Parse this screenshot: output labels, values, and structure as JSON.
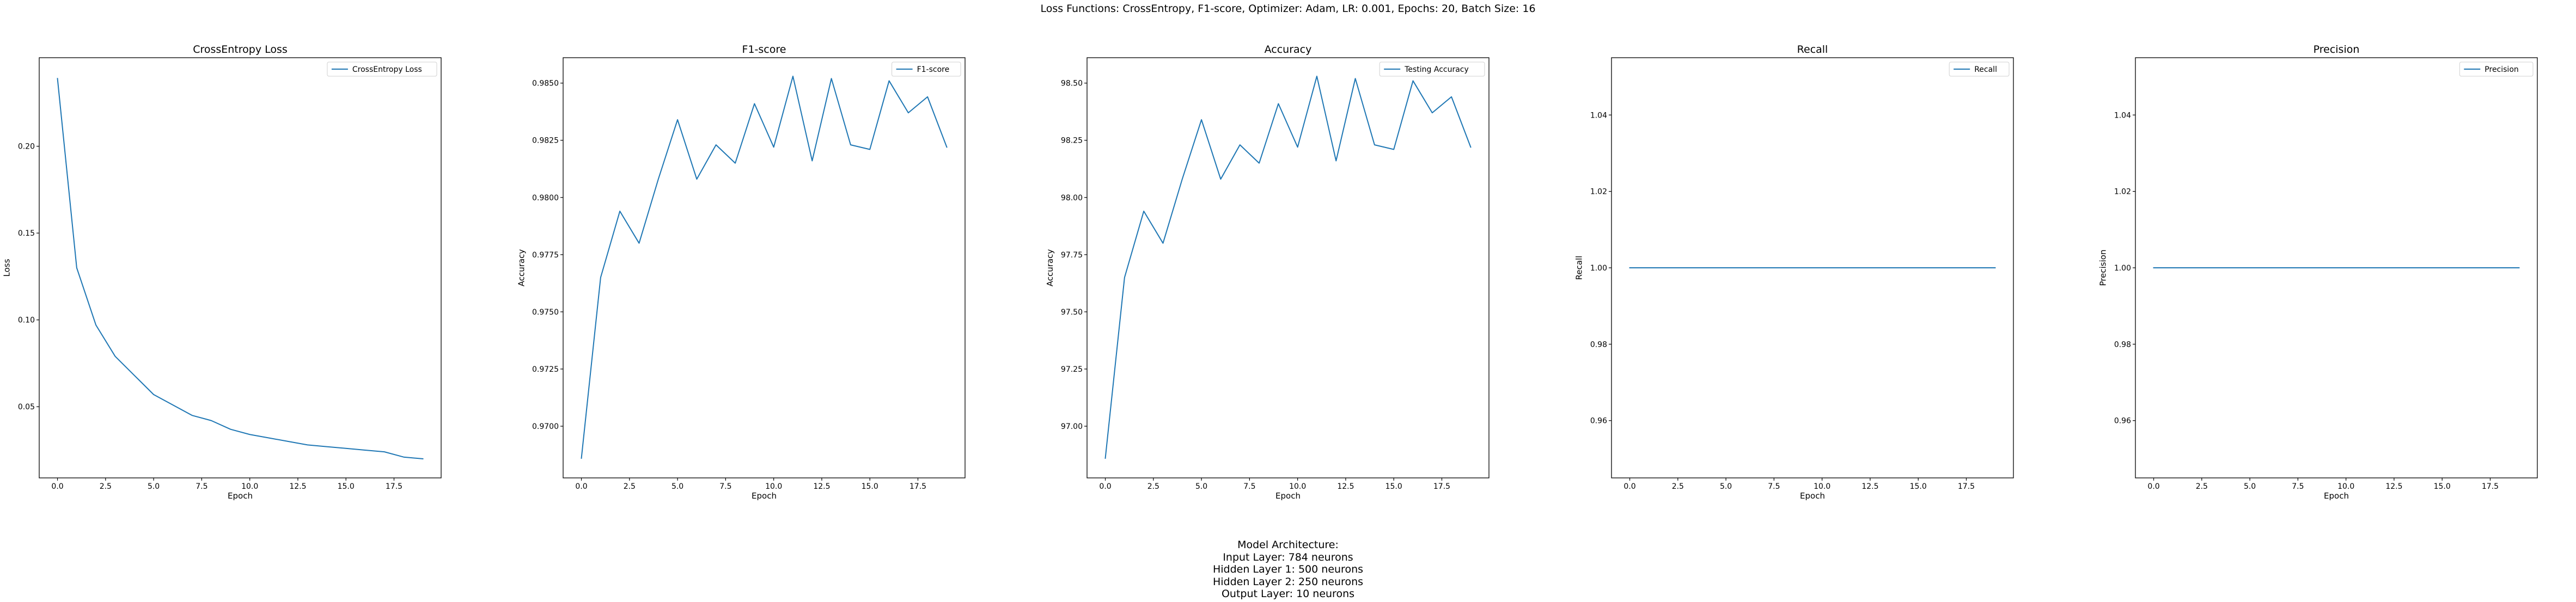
{
  "figure": {
    "suptitle": "Loss Functions: CrossEntropy, F1-score, Optimizer: Adam, LR: 0.001, Epochs: 20, Batch Size: 16",
    "architecture": {
      "heading": "Model Architecture:",
      "lines": [
        "Input Layer: 784 neurons",
        "Hidden Layer 1: 500 neurons",
        "Hidden Layer 2: 250 neurons",
        "Output Layer: 10 neurons"
      ]
    }
  },
  "colors": {
    "line": "#1f77b4",
    "axis": "#000000",
    "legend_border": "#d0d0d0"
  },
  "chart_data": [
    {
      "type": "line",
      "title": "CrossEntropy Loss",
      "xlabel": "Epoch",
      "ylabel": "Loss",
      "legend_position": "top-right",
      "xlim": [
        -0.95,
        19.95
      ],
      "ylim": [
        0.009,
        0.251
      ],
      "xticks": [
        0,
        2.5,
        5,
        7.5,
        10,
        12.5,
        15,
        17.5
      ],
      "xtick_labels": [
        "0.0",
        "2.5",
        "5.0",
        "7.5",
        "10.0",
        "12.5",
        "15.0",
        "17.5"
      ],
      "yticks": [
        0.05,
        0.1,
        0.15,
        0.2
      ],
      "ytick_labels": [
        "0.05",
        "0.10",
        "0.15",
        "0.20"
      ],
      "series": [
        {
          "name": "CrossEntropy Loss",
          "x": [
            0,
            1,
            2,
            3,
            4,
            5,
            6,
            7,
            8,
            9,
            10,
            11,
            12,
            13,
            14,
            15,
            16,
            17,
            18,
            19
          ],
          "y": [
            0.239,
            0.13,
            0.097,
            0.079,
            0.068,
            0.057,
            0.051,
            0.045,
            0.042,
            0.037,
            0.034,
            0.032,
            0.03,
            0.028,
            0.027,
            0.026,
            0.025,
            0.024,
            0.021,
            0.02
          ]
        }
      ]
    },
    {
      "type": "line",
      "title": "F1-score",
      "xlabel": "Epoch",
      "ylabel": "Accuracy",
      "legend_position": "top-right",
      "xlim": [
        -0.95,
        19.95
      ],
      "ylim": [
        0.96774,
        0.98611
      ],
      "xticks": [
        0,
        2.5,
        5,
        7.5,
        10,
        12.5,
        15,
        17.5
      ],
      "xtick_labels": [
        "0.0",
        "2.5",
        "5.0",
        "7.5",
        "10.0",
        "12.5",
        "15.0",
        "17.5"
      ],
      "yticks": [
        0.97,
        0.9725,
        0.975,
        0.9775,
        0.98,
        0.9825,
        0.985
      ],
      "ytick_labels": [
        "0.9700",
        "0.9725",
        "0.9750",
        "0.9775",
        "0.9800",
        "0.9825",
        "0.9850"
      ],
      "series": [
        {
          "name": "F1-score",
          "x": [
            0,
            1,
            2,
            3,
            4,
            5,
            6,
            7,
            8,
            9,
            10,
            11,
            12,
            13,
            14,
            15,
            16,
            17,
            18,
            19
          ],
          "y": [
            0.9686,
            0.9765,
            0.9794,
            0.978,
            0.9808,
            0.9834,
            0.9808,
            0.9823,
            0.9815,
            0.9841,
            0.9822,
            0.9853,
            0.9816,
            0.9852,
            0.9823,
            0.9821,
            0.9851,
            0.9837,
            0.9844,
            0.9822
          ]
        }
      ]
    },
    {
      "type": "line",
      "title": "Accuracy",
      "xlabel": "Epoch",
      "ylabel": "Accuracy",
      "legend_position": "top-right",
      "xlim": [
        -0.95,
        19.95
      ],
      "ylim": [
        96.774,
        98.611
      ],
      "xticks": [
        0,
        2.5,
        5,
        7.5,
        10,
        12.5,
        15,
        17.5
      ],
      "xtick_labels": [
        "0.0",
        "2.5",
        "5.0",
        "7.5",
        "10.0",
        "12.5",
        "15.0",
        "17.5"
      ],
      "yticks": [
        97.0,
        97.25,
        97.5,
        97.75,
        98.0,
        98.25,
        98.5
      ],
      "ytick_labels": [
        "97.00",
        "97.25",
        "97.50",
        "97.75",
        "98.00",
        "98.25",
        "98.50"
      ],
      "series": [
        {
          "name": "Testing Accuracy",
          "x": [
            0,
            1,
            2,
            3,
            4,
            5,
            6,
            7,
            8,
            9,
            10,
            11,
            12,
            13,
            14,
            15,
            16,
            17,
            18,
            19
          ],
          "y": [
            96.86,
            97.65,
            97.94,
            97.8,
            98.08,
            98.34,
            98.08,
            98.23,
            98.15,
            98.41,
            98.22,
            98.53,
            98.16,
            98.52,
            98.23,
            98.21,
            98.51,
            98.37,
            98.44,
            98.22
          ]
        }
      ]
    },
    {
      "type": "line",
      "title": "Recall",
      "xlabel": "Epoch",
      "ylabel": "Recall",
      "legend_position": "top-right",
      "xlim": [
        -0.95,
        19.95
      ],
      "ylim": [
        0.945,
        1.055
      ],
      "xticks": [
        0,
        2.5,
        5,
        7.5,
        10,
        12.5,
        15,
        17.5
      ],
      "xtick_labels": [
        "0.0",
        "2.5",
        "5.0",
        "7.5",
        "10.0",
        "12.5",
        "15.0",
        "17.5"
      ],
      "yticks": [
        0.96,
        0.98,
        1.0,
        1.02,
        1.04
      ],
      "ytick_labels": [
        "0.96",
        "0.98",
        "1.00",
        "1.02",
        "1.04"
      ],
      "series": [
        {
          "name": "Recall",
          "x": [
            0,
            1,
            2,
            3,
            4,
            5,
            6,
            7,
            8,
            9,
            10,
            11,
            12,
            13,
            14,
            15,
            16,
            17,
            18,
            19
          ],
          "y": [
            1,
            1,
            1,
            1,
            1,
            1,
            1,
            1,
            1,
            1,
            1,
            1,
            1,
            1,
            1,
            1,
            1,
            1,
            1,
            1
          ]
        }
      ]
    },
    {
      "type": "line",
      "title": "Precision",
      "xlabel": "Epoch",
      "ylabel": "Precision",
      "legend_position": "top-right",
      "xlim": [
        -0.95,
        19.95
      ],
      "ylim": [
        0.945,
        1.055
      ],
      "xticks": [
        0,
        2.5,
        5,
        7.5,
        10,
        12.5,
        15,
        17.5
      ],
      "xtick_labels": [
        "0.0",
        "2.5",
        "5.0",
        "7.5",
        "10.0",
        "12.5",
        "15.0",
        "17.5"
      ],
      "yticks": [
        0.96,
        0.98,
        1.0,
        1.02,
        1.04
      ],
      "ytick_labels": [
        "0.96",
        "0.98",
        "1.00",
        "1.02",
        "1.04"
      ],
      "series": [
        {
          "name": "Precision",
          "x": [
            0,
            1,
            2,
            3,
            4,
            5,
            6,
            7,
            8,
            9,
            10,
            11,
            12,
            13,
            14,
            15,
            16,
            17,
            18,
            19
          ],
          "y": [
            1,
            1,
            1,
            1,
            1,
            1,
            1,
            1,
            1,
            1,
            1,
            1,
            1,
            1,
            1,
            1,
            1,
            1,
            1,
            1
          ]
        }
      ]
    }
  ]
}
